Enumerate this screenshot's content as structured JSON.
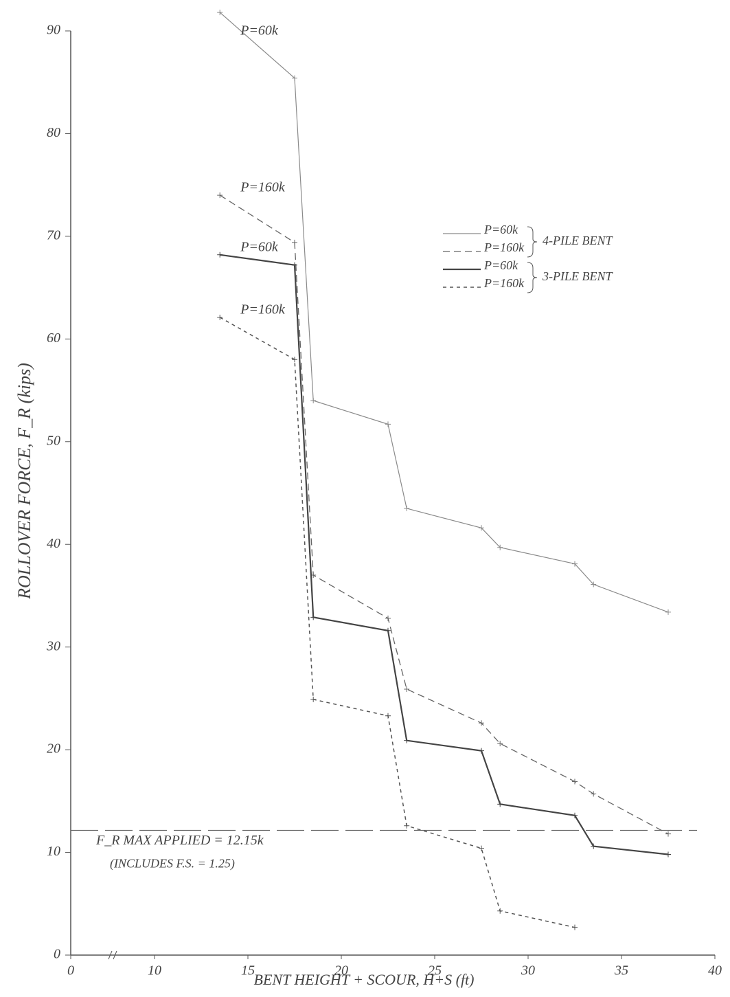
{
  "chart_data": {
    "type": "line",
    "x_label": "BENT HEIGHT + SCOUR, H+S (ft)",
    "y_label": "ROLLOVER FORCE, F_R (kips)",
    "xlim": [
      0,
      40
    ],
    "ylim": [
      0,
      90
    ],
    "xticks": [
      0,
      10,
      15,
      20,
      25,
      30,
      35,
      40
    ],
    "yticks": [
      0,
      10,
      20,
      30,
      40,
      50,
      60,
      70,
      80,
      90
    ],
    "x_axis_break": true,
    "grid": false,
    "legend": "upper right",
    "series": [
      {
        "name": "P=60k",
        "group": "4-PILE BENT",
        "color": "#8a8a8a",
        "width": 1.2,
        "line_style": "solid",
        "x": [
          13.5,
          17.5,
          18.5,
          22.5,
          23.5,
          27.5,
          28.5,
          32.5,
          33.5,
          37.5
        ],
        "values": [
          91.8,
          85.4,
          54.0,
          51.7,
          43.5,
          41.6,
          39.7,
          38.1,
          36.1,
          33.4
        ]
      },
      {
        "name": "P=160k",
        "group": "4-PILE BENT",
        "color": "#666666",
        "width": 1.3,
        "line_style": "dashed",
        "x": [
          13.5,
          17.5,
          18.5,
          22.5,
          23.5,
          27.5,
          28.5,
          32.5,
          33.5,
          37.5
        ],
        "values": [
          74.0,
          69.4,
          37.0,
          32.8,
          25.9,
          22.6,
          20.6,
          16.9,
          15.7,
          11.8
        ]
      },
      {
        "name": "P=60k",
        "group": "3-PILE BENT",
        "color": "#444444",
        "width": 2.2,
        "line_style": "solid",
        "x": [
          13.5,
          17.5,
          18.5,
          22.5,
          23.5,
          27.5,
          28.5,
          32.5,
          33.5,
          37.5
        ],
        "values": [
          68.2,
          67.2,
          32.9,
          31.6,
          20.9,
          19.9,
          14.7,
          13.6,
          10.6,
          9.8
        ]
      },
      {
        "name": "P=160k",
        "group": "3-PILE BENT",
        "color": "#555555",
        "width": 1.5,
        "line_style": "short-dashed",
        "x": [
          13.5,
          17.5,
          18.5,
          22.5,
          23.5,
          27.5,
          28.5,
          32.5
        ],
        "values": [
          62.1,
          58.0,
          24.9,
          23.3,
          12.6,
          10.4,
          4.3,
          2.7
        ]
      }
    ],
    "reference_line": {
      "value": 12.15,
      "label": "F_R MAX APPLIED = 12.15k",
      "note": "(INCLUDES F.S. = 1.25)"
    }
  }
}
